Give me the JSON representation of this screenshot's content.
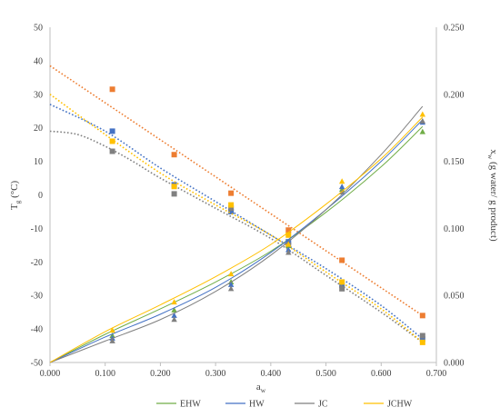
{
  "chart_data": {
    "type": "scatter",
    "title": "",
    "xlabel": {
      "main": "a",
      "sub": "w"
    },
    "ylabel_left": {
      "main": "T",
      "sub": "g",
      "unit": " (°C)"
    },
    "ylabel_right": {
      "main": "x",
      "sub": "w",
      "unit": " (g water/ g product)"
    },
    "xlim": [
      0,
      0.7
    ],
    "ylim_left": [
      -50,
      50
    ],
    "ylim_right": [
      0,
      0.25
    ],
    "x_ticks": [
      "0.000",
      "0.100",
      "0.200",
      "0.300",
      "0.400",
      "0.500",
      "0.600",
      "0.700"
    ],
    "y_left_ticks": [
      "50",
      "40",
      "30",
      "20",
      "10",
      "0",
      "-10",
      "-20",
      "-30",
      "-40",
      "-50"
    ],
    "y_right_ticks": [
      "0.250",
      "0.200",
      "0.150",
      "0.100",
      "0.050",
      "0.000"
    ],
    "grid": false,
    "legend_position": "bottom",
    "legend": [
      "EHW",
      "HW",
      "JC",
      "JCHW"
    ],
    "tg_series": [
      {
        "color": "#ED7D31",
        "marker": "square",
        "x": [
          0.113,
          0.225,
          0.328,
          0.432,
          0.529,
          0.675
        ],
        "y": [
          31.5,
          12,
          0.5,
          -10.5,
          -19.5,
          -36
        ],
        "fit": [
          [
            0,
            38.5
          ],
          [
            0.675,
            -36
          ]
        ]
      },
      {
        "color": "#4472C4",
        "marker": "square",
        "x": [
          0.113,
          0.225,
          0.328,
          0.432,
          0.529,
          0.675
        ],
        "y": [
          19,
          3,
          -5,
          -14,
          -27,
          -43
        ],
        "fit": [
          [
            0,
            27
          ],
          [
            0.1,
            19
          ],
          [
            0.2,
            8
          ],
          [
            0.3,
            -2
          ],
          [
            0.4,
            -12
          ],
          [
            0.5,
            -22
          ],
          [
            0.6,
            -33
          ],
          [
            0.675,
            -43
          ]
        ]
      },
      {
        "color": "#808080",
        "marker": "square",
        "x": [
          0.113,
          0.225,
          0.328,
          0.432,
          0.529,
          0.675
        ],
        "y": [
          13,
          0.3,
          -4,
          -15,
          -28,
          -42
        ],
        "fit": [
          [
            0,
            19
          ],
          [
            0.05,
            18
          ],
          [
            0.1,
            14.5
          ],
          [
            0.15,
            10
          ],
          [
            0.2,
            5
          ],
          [
            0.3,
            -4
          ],
          [
            0.4,
            -13
          ],
          [
            0.5,
            -24
          ],
          [
            0.6,
            -35
          ],
          [
            0.675,
            -44
          ]
        ]
      },
      {
        "color": "#FFC000",
        "marker": "square",
        "x": [
          0.113,
          0.225,
          0.328,
          0.432,
          0.529,
          0.675
        ],
        "y": [
          16,
          2.5,
          -3,
          -12,
          -26,
          -44
        ],
        "fit": [
          [
            0,
            30
          ],
          [
            0.1,
            18
          ],
          [
            0.2,
            6.5
          ],
          [
            0.3,
            -3
          ],
          [
            0.4,
            -12
          ],
          [
            0.5,
            -23
          ],
          [
            0.6,
            -34
          ],
          [
            0.675,
            -44
          ]
        ]
      }
    ],
    "xw_series": [
      {
        "name": "EHW",
        "color": "#70AD47",
        "x": [
          0.113,
          0.225,
          0.328,
          0.432,
          0.529,
          0.675
        ],
        "y": [
          0.02,
          0.039,
          0.06,
          0.087,
          0.129,
          0.172
        ],
        "fit": [
          [
            0,
            0
          ],
          [
            0.1,
            0.021
          ],
          [
            0.2,
            0.04
          ],
          [
            0.3,
            0.06
          ],
          [
            0.4,
            0.083
          ],
          [
            0.5,
            0.112
          ],
          [
            0.6,
            0.146
          ],
          [
            0.675,
            0.176
          ]
        ]
      },
      {
        "name": "HW",
        "color": "#4472C4",
        "x": [
          0.113,
          0.225,
          0.328,
          0.432,
          0.529,
          0.675
        ],
        "y": [
          0.018,
          0.035,
          0.058,
          0.084,
          0.131,
          0.179
        ],
        "fit": [
          [
            0,
            0
          ],
          [
            0.1,
            0.019
          ],
          [
            0.2,
            0.036
          ],
          [
            0.3,
            0.056
          ],
          [
            0.4,
            0.082
          ],
          [
            0.5,
            0.114
          ],
          [
            0.6,
            0.15
          ],
          [
            0.675,
            0.181
          ]
        ]
      },
      {
        "name": "JC",
        "color": "#7F7F7F",
        "x": [
          0.113,
          0.225,
          0.328,
          0.432,
          0.529,
          0.675
        ],
        "y": [
          0.016,
          0.032,
          0.055,
          0.082,
          0.127,
          0.18
        ],
        "fit": [
          [
            0,
            0
          ],
          [
            0.1,
            0.016
          ],
          [
            0.2,
            0.032
          ],
          [
            0.3,
            0.053
          ],
          [
            0.4,
            0.08
          ],
          [
            0.5,
            0.114
          ],
          [
            0.6,
            0.155
          ],
          [
            0.675,
            0.191
          ]
        ]
      },
      {
        "name": "JCHW",
        "color": "#FFC000",
        "x": [
          0.113,
          0.225,
          0.328,
          0.432,
          0.529,
          0.675
        ],
        "y": [
          0.024,
          0.045,
          0.066,
          0.088,
          0.135,
          0.185
        ],
        "fit": [
          [
            0,
            0
          ],
          [
            0.1,
            0.023
          ],
          [
            0.2,
            0.043
          ],
          [
            0.3,
            0.064
          ],
          [
            0.4,
            0.088
          ],
          [
            0.5,
            0.118
          ],
          [
            0.6,
            0.152
          ],
          [
            0.675,
            0.183
          ]
        ]
      }
    ]
  }
}
